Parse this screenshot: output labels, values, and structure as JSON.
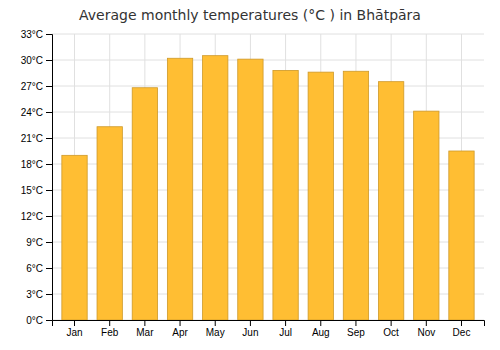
{
  "chart_data": {
    "type": "bar",
    "title": "Average monthly temperatures (°C ) in Bhātpāra",
    "categories": [
      "Jan",
      "Feb",
      "Mar",
      "Apr",
      "May",
      "Jun",
      "Jul",
      "Aug",
      "Sep",
      "Oct",
      "Nov",
      "Dec"
    ],
    "values": [
      19.0,
      22.3,
      26.8,
      30.2,
      30.5,
      30.1,
      28.8,
      28.6,
      28.7,
      27.5,
      24.1,
      19.5
    ],
    "color": "#FFBE33",
    "ylim": [
      0,
      33
    ],
    "yticks": [
      {
        "value": 0,
        "label": "0°C"
      },
      {
        "value": 3,
        "label": "3°C"
      },
      {
        "value": 6,
        "label": "6°C"
      },
      {
        "value": 9,
        "label": "9°C"
      },
      {
        "value": 12,
        "label": "12°C"
      },
      {
        "value": 15,
        "label": "15°C"
      },
      {
        "value": 18,
        "label": "18°C"
      },
      {
        "value": 21,
        "label": "21°C"
      },
      {
        "value": 24,
        "label": "24°C"
      },
      {
        "value": 27,
        "label": "27°C"
      },
      {
        "value": 30,
        "label": "30°C"
      },
      {
        "value": 33,
        "label": "33°C"
      }
    ],
    "grid": true
  }
}
